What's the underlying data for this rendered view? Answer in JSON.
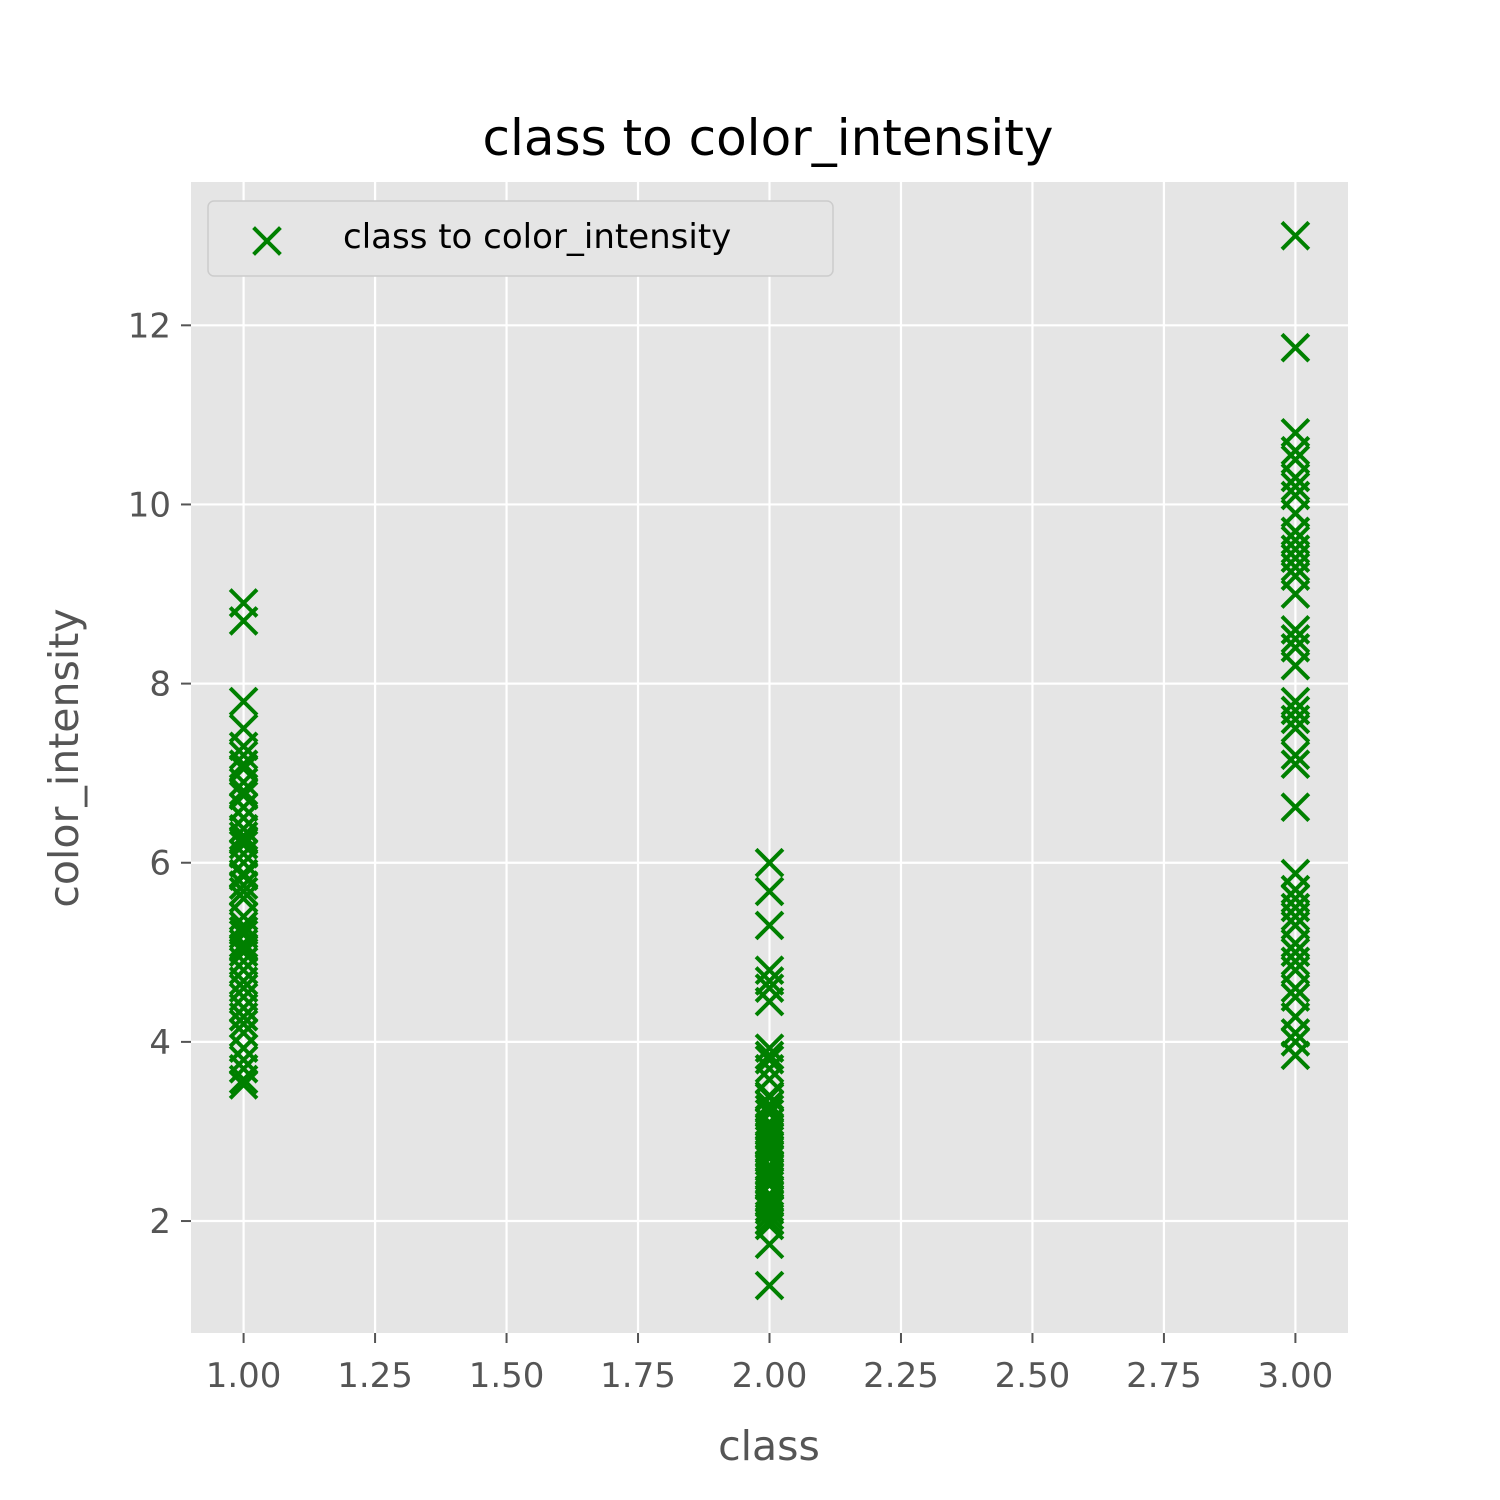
{
  "chart_data": {
    "type": "scatter",
    "title": "class to color_intensity",
    "xlabel": "class",
    "ylabel": "color_intensity",
    "xlim": [
      0.9,
      3.1
    ],
    "ylim": [
      0.75,
      13.6
    ],
    "xticks": [
      1.0,
      1.25,
      1.5,
      1.75,
      2.0,
      2.25,
      2.5,
      2.75,
      3.0
    ],
    "xtick_labels": [
      "1.00",
      "1.25",
      "1.50",
      "1.75",
      "2.00",
      "2.25",
      "2.50",
      "2.75",
      "3.00"
    ],
    "yticks": [
      2,
      4,
      6,
      8,
      10,
      12
    ],
    "ytick_labels": [
      "2",
      "4",
      "6",
      "8",
      "10",
      "12"
    ],
    "grid": true,
    "legend_position": "upper-left",
    "background_color": "#E5E5E5",
    "marker": "x",
    "marker_color": "#008000",
    "series": [
      {
        "name": "class to color_intensity",
        "points": [
          [
            1,
            3.52
          ],
          [
            1,
            3.58
          ],
          [
            1,
            3.7
          ],
          [
            1,
            3.8
          ],
          [
            1,
            3.93
          ],
          [
            1,
            4.1
          ],
          [
            1,
            4.2
          ],
          [
            1,
            4.28
          ],
          [
            1,
            4.38
          ],
          [
            1,
            4.5
          ],
          [
            1,
            4.6
          ],
          [
            1,
            4.68
          ],
          [
            1,
            4.8
          ],
          [
            1,
            4.9
          ],
          [
            1,
            5.0
          ],
          [
            1,
            5.05
          ],
          [
            1,
            5.1
          ],
          [
            1,
            5.2
          ],
          [
            1,
            5.24
          ],
          [
            1,
            5.3
          ],
          [
            1,
            5.4
          ],
          [
            1,
            5.6
          ],
          [
            1,
            5.68
          ],
          [
            1,
            5.75
          ],
          [
            1,
            5.85
          ],
          [
            1,
            5.88
          ],
          [
            1,
            6.0
          ],
          [
            1,
            6.1
          ],
          [
            1,
            6.2
          ],
          [
            1,
            6.25
          ],
          [
            1,
            6.3
          ],
          [
            1,
            6.38
          ],
          [
            1,
            6.5
          ],
          [
            1,
            6.62
          ],
          [
            1,
            6.75
          ],
          [
            1,
            6.8
          ],
          [
            1,
            6.9
          ],
          [
            1,
            7.05
          ],
          [
            1,
            7.1
          ],
          [
            1,
            7.2
          ],
          [
            1,
            7.3
          ],
          [
            1,
            7.5
          ],
          [
            1,
            7.8
          ],
          [
            1,
            8.7
          ],
          [
            1,
            8.9
          ],
          [
            2,
            1.28
          ],
          [
            2,
            1.74
          ],
          [
            2,
            1.95
          ],
          [
            2,
            2.0
          ],
          [
            2,
            2.06
          ],
          [
            2,
            2.12
          ],
          [
            2,
            2.15
          ],
          [
            2,
            2.2
          ],
          [
            2,
            2.25
          ],
          [
            2,
            2.3
          ],
          [
            2,
            2.4
          ],
          [
            2,
            2.45
          ],
          [
            2,
            2.5
          ],
          [
            2,
            2.55
          ],
          [
            2,
            2.6
          ],
          [
            2,
            2.62
          ],
          [
            2,
            2.7
          ],
          [
            2,
            2.75
          ],
          [
            2,
            2.8
          ],
          [
            2,
            2.85
          ],
          [
            2,
            2.9
          ],
          [
            2,
            2.95
          ],
          [
            2,
            3.0
          ],
          [
            2,
            3.05
          ],
          [
            2,
            3.1
          ],
          [
            2,
            3.2
          ],
          [
            2,
            3.25
          ],
          [
            2,
            3.3
          ],
          [
            2,
            3.38
          ],
          [
            2,
            3.4
          ],
          [
            2,
            3.58
          ],
          [
            2,
            3.7
          ],
          [
            2,
            3.8
          ],
          [
            2,
            3.85
          ],
          [
            2,
            3.93
          ],
          [
            2,
            4.45
          ],
          [
            2,
            4.6
          ],
          [
            2,
            4.68
          ],
          [
            2,
            4.8
          ],
          [
            2,
            5.3
          ],
          [
            2,
            5.68
          ],
          [
            2,
            6.0
          ],
          [
            3,
            3.85
          ],
          [
            3,
            4.0
          ],
          [
            3,
            4.1
          ],
          [
            3,
            4.28
          ],
          [
            3,
            4.5
          ],
          [
            3,
            4.6
          ],
          [
            3,
            4.8
          ],
          [
            3,
            4.9
          ],
          [
            3,
            5.0
          ],
          [
            3,
            5.1
          ],
          [
            3,
            5.3
          ],
          [
            3,
            5.4
          ],
          [
            3,
            5.5
          ],
          [
            3,
            5.6
          ],
          [
            3,
            5.7
          ],
          [
            3,
            5.88
          ],
          [
            3,
            6.62
          ],
          [
            3,
            7.1
          ],
          [
            3,
            7.2
          ],
          [
            3,
            7.5
          ],
          [
            3,
            7.6
          ],
          [
            3,
            7.7
          ],
          [
            3,
            7.8
          ],
          [
            3,
            8.2
          ],
          [
            3,
            8.4
          ],
          [
            3,
            8.5
          ],
          [
            3,
            8.6
          ],
          [
            3,
            9.0
          ],
          [
            3,
            9.2
          ],
          [
            3,
            9.3
          ],
          [
            3,
            9.4
          ],
          [
            3,
            9.5
          ],
          [
            3,
            9.6
          ],
          [
            3,
            9.7
          ],
          [
            3,
            9.9
          ],
          [
            3,
            10.1
          ],
          [
            3,
            10.2
          ],
          [
            3,
            10.3
          ],
          [
            3,
            10.5
          ],
          [
            3,
            10.6
          ],
          [
            3,
            10.8
          ],
          [
            3,
            11.75
          ],
          [
            3,
            13.0
          ]
        ]
      }
    ]
  }
}
